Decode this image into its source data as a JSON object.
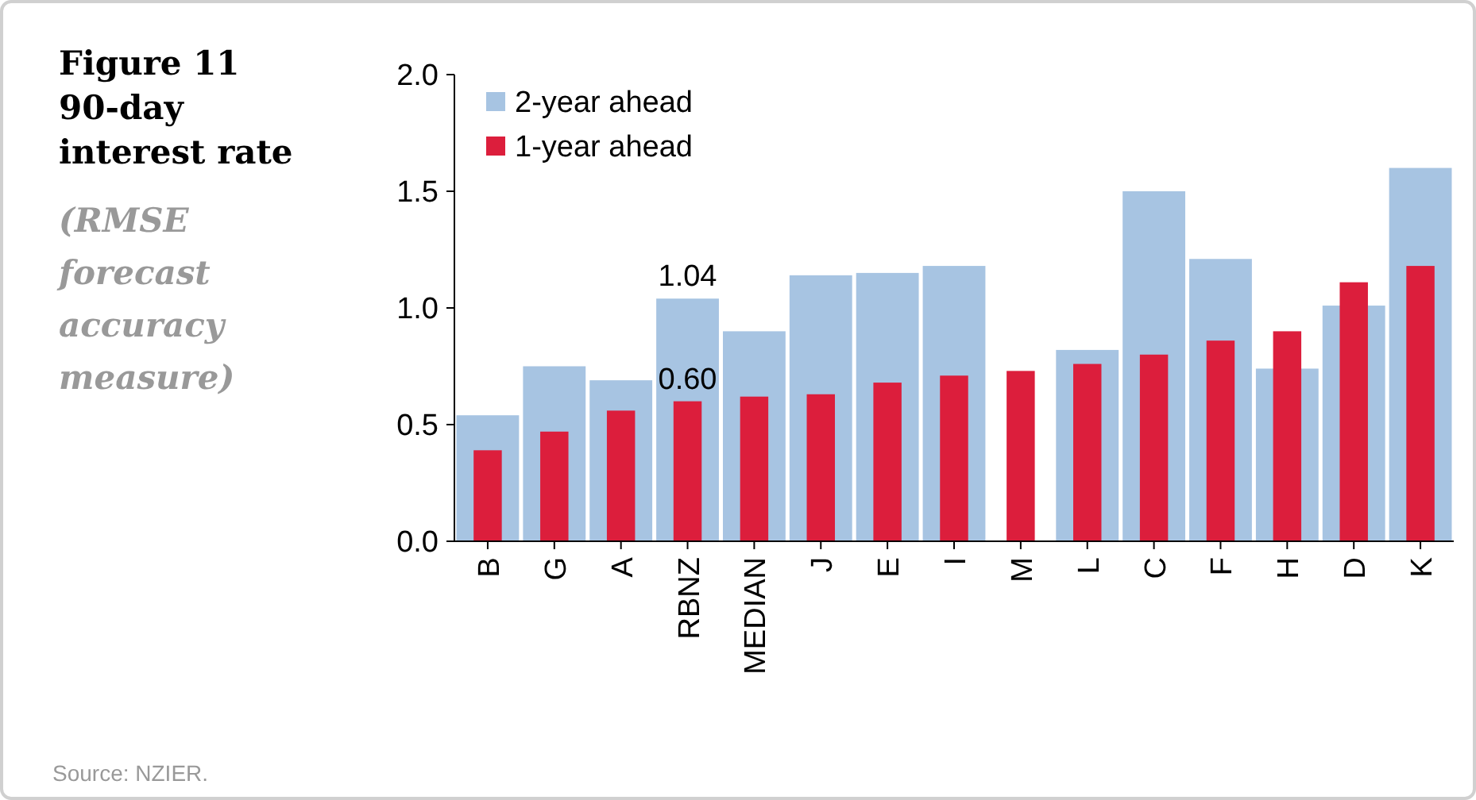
{
  "chart_data": {
    "type": "bar",
    "title": "Figure 11 90-day interest rate",
    "subtitle": "(RMSE forecast accuracy measure)",
    "categories": [
      "B",
      "G",
      "A",
      "RBNZ",
      "MEDIAN",
      "J",
      "E",
      "I",
      "M",
      "L",
      "C",
      "F",
      "H",
      "D",
      "K"
    ],
    "series": [
      {
        "name": "2-year ahead",
        "color": "#a7c4e2",
        "values": [
          0.54,
          0.75,
          0.69,
          1.04,
          0.9,
          1.14,
          1.15,
          1.18,
          null,
          0.82,
          1.5,
          1.21,
          0.74,
          1.01,
          1.6
        ],
        "value_labels": [
          null,
          null,
          null,
          "1.04",
          null,
          null,
          null,
          null,
          null,
          null,
          null,
          null,
          null,
          null,
          null
        ]
      },
      {
        "name": "1-year ahead",
        "color": "#dc1e3c",
        "values": [
          0.39,
          0.47,
          0.56,
          0.6,
          0.62,
          0.63,
          0.68,
          0.71,
          0.73,
          0.76,
          0.8,
          0.86,
          0.9,
          1.11,
          1.18
        ],
        "value_labels": [
          null,
          null,
          null,
          "0.60",
          null,
          null,
          null,
          null,
          null,
          null,
          null,
          null,
          null,
          null,
          null
        ]
      }
    ],
    "ylim": [
      0,
      2
    ],
    "yticks": [
      {
        "value": 0,
        "label": "0.0"
      },
      {
        "value": 0.5,
        "label": "0.5"
      },
      {
        "value": 1,
        "label": "1.0"
      },
      {
        "value": 1.5,
        "label": "1.5"
      },
      {
        "value": 2,
        "label": "2.0"
      }
    ],
    "legend": "top left",
    "grid": false,
    "annotations": [
      "Source: NZIER."
    ]
  }
}
